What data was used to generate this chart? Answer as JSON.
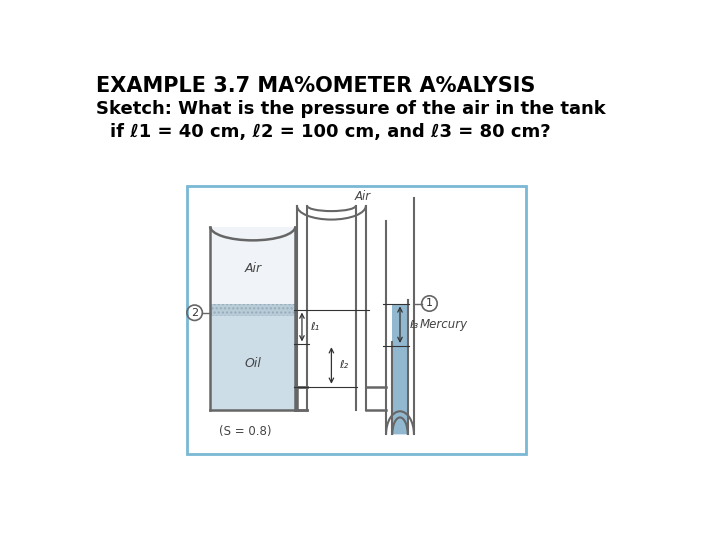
{
  "title_line1": "EXAMPLE 3.7 MA%OMETER A%ALYSIS",
  "title_line2": "Sketch: What is the pressure of the air in the tank",
  "title_line3": "    if ℓ1 = 40 cm, ℓ2 = 100 cm, and ℓ3 = 80 cm?",
  "fig_bg": "#ffffff",
  "box_edge_color": "#7ab8d4",
  "tank_oil_color": "#ccdde8",
  "tank_air_color": "#f0f4f8",
  "mercury_color": "#92b8d0",
  "tube_color": "#666666",
  "arrow_color": "#333333",
  "text_color": "#444444",
  "hatch_color": "#aabbcc"
}
